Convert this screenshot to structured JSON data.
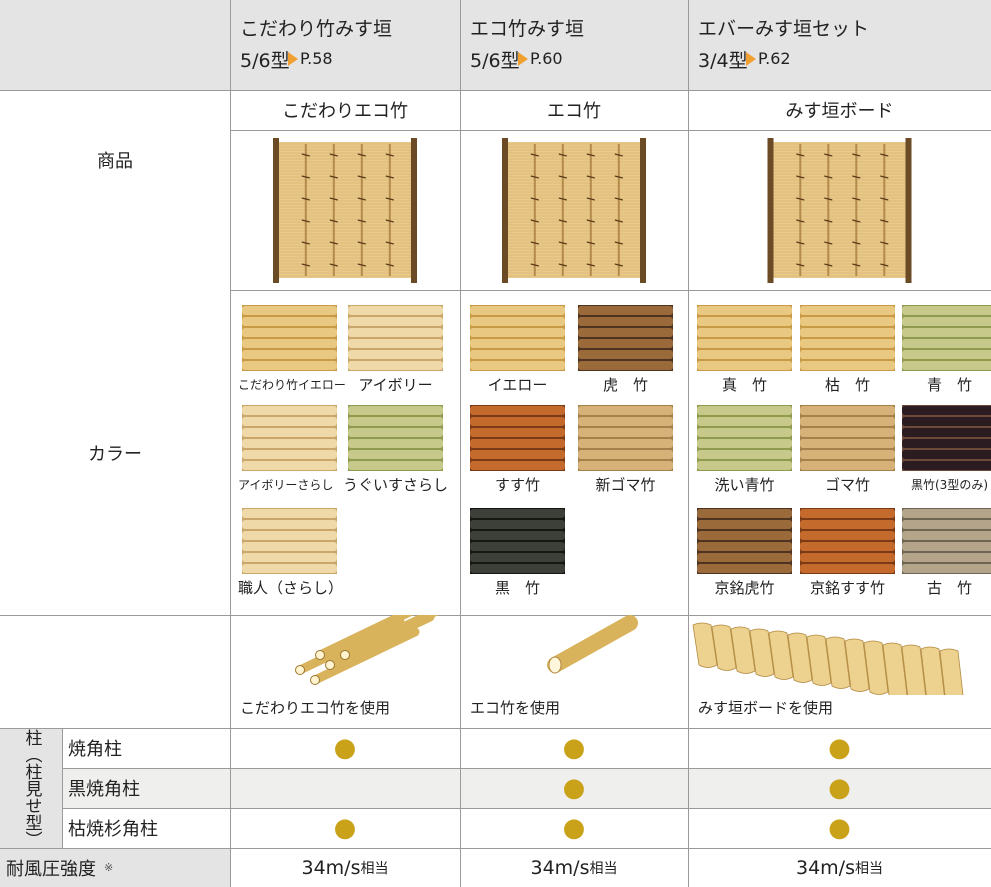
{
  "row_labels": {
    "product": "商品",
    "color": "カラー",
    "pillar": "柱（柱見せ型）",
    "wind": "耐風圧強度",
    "wind_note": "※"
  },
  "pillar_types": [
    "焼角柱",
    "黒焼角柱",
    "枯焼杉角柱"
  ],
  "columns": [
    {
      "title": "こだわり竹みす垣",
      "model": "5/6型",
      "page": "P.58",
      "product": "こだわりエコ竹",
      "colors": [
        "こだわり竹イエロー",
        "アイボリー",
        "アイボリーさらし",
        "うぐいすさらし",
        "職人（さらし）"
      ],
      "material": "こだわりエコ竹を使用",
      "pillars": [
        "●",
        null,
        "●"
      ],
      "wind": "34m/s",
      "wind_unit": "相当"
    },
    {
      "title": "エコ竹みす垣",
      "model": "5/6型",
      "page": "P.60",
      "product": "エコ竹",
      "colors": [
        "イエロー",
        "虎　竹",
        "すす竹",
        "新ゴマ竹",
        "黒　竹"
      ],
      "material": "エコ竹を使用",
      "pillars": [
        "●",
        "●",
        "●"
      ],
      "wind": "34m/s",
      "wind_unit": "相当"
    },
    {
      "title": "エバーみす垣セット",
      "model": "3/4型",
      "page": "P.62",
      "product": "みす垣ボード",
      "colors": [
        "真　竹",
        "枯　竹",
        "青　竹",
        "洗い青竹",
        "ゴマ竹",
        "黒竹(3型のみ)",
        "京銘虎竹",
        "京銘すす竹",
        "古　竹"
      ],
      "material": "みす垣ボードを使用",
      "pillars": [
        "●",
        "●",
        "●"
      ],
      "wind": "34m/s",
      "wind_unit": "相当"
    }
  ]
}
